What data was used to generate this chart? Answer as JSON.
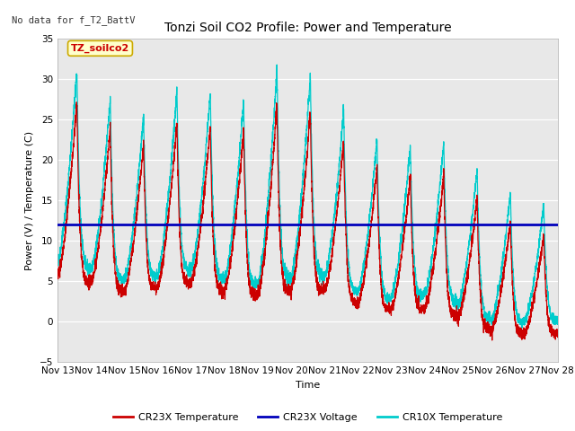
{
  "title": "Tonzi Soil CO2 Profile: Power and Temperature",
  "no_data_text": "No data for f_T2_BattV",
  "ylabel": "Power (V) / Temperature (C)",
  "xlabel": "Time",
  "ylim": [
    -5,
    35
  ],
  "yticks": [
    -5,
    0,
    5,
    10,
    15,
    20,
    25,
    30,
    35
  ],
  "xlim": [
    0,
    15
  ],
  "xtick_labels": [
    "Nov 13",
    "Nov 14",
    "Nov 15",
    "Nov 16",
    "Nov 17",
    "Nov 18",
    "Nov 19",
    "Nov 20",
    "Nov 21",
    "Nov 22",
    "Nov 23",
    "Nov 24",
    "Nov 25",
    "Nov 26",
    "Nov 27",
    "Nov 28"
  ],
  "bg_color": "#e8e8e8",
  "fig_bg_color": "#ffffff",
  "voltage_value": 12.0,
  "voltage_color": "#0000bb",
  "cr23x_color": "#cc0000",
  "cr10x_color": "#00cccc",
  "legend_entries": [
    "CR23X Temperature",
    "CR23X Voltage",
    "CR10X Temperature"
  ],
  "legend_colors": [
    "#cc0000",
    "#0000bb",
    "#00cccc"
  ],
  "legend_label_text": "TZ_soilco2",
  "legend_label_bg": "#ffffcc",
  "legend_label_border": "#ccaa00",
  "title_fontsize": 10,
  "axis_fontsize": 8,
  "tick_fontsize": 7.5
}
